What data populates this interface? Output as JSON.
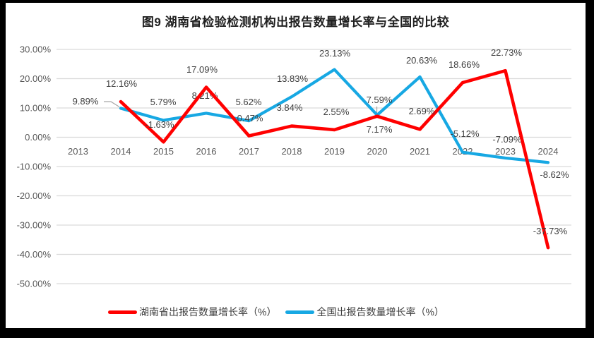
{
  "page": {
    "background": "#000000",
    "canvas_background": "#FFFFFF"
  },
  "chart_data": {
    "type": "line",
    "title": "图9 湖南省检验检测机构出报告数量增长率与全国的比较",
    "categories": [
      "2013",
      "2014",
      "2015",
      "2016",
      "2017",
      "2018",
      "2019",
      "2020",
      "2021",
      "2022",
      "2023",
      "2024"
    ],
    "y_axis": {
      "min": -50,
      "max": 30,
      "step": 10,
      "tick_labels": [
        "30.00%",
        "20.00%",
        "10.00%",
        "0.00%",
        "-10.00%",
        "-20.00%",
        "-30.00%",
        "-40.00%",
        "-50.00%"
      ],
      "grid": true
    },
    "legend_position": "bottom",
    "series": [
      {
        "name": "湖南省出报告数量增长率（%）",
        "color": "#FF0000",
        "values": [
          null,
          12.16,
          -1.63,
          17.09,
          0.47,
          3.84,
          2.55,
          7.17,
          2.69,
          18.66,
          22.73,
          -37.73
        ],
        "labels": [
          null,
          "12.16%",
          "-1.63%",
          "17.09%",
          "0.47%",
          "3.84%",
          "2.55%",
          "7.17%",
          "2.69%",
          "18.66%",
          "22.73%",
          "-37.73%"
        ]
      },
      {
        "name": "全国出报告数量增长率（%）",
        "color": "#17A8E3",
        "values": [
          null,
          9.89,
          5.79,
          8.21,
          5.62,
          13.83,
          23.13,
          7.59,
          20.63,
          -5.12,
          -7.09,
          -8.62
        ],
        "labels": [
          null,
          "9.89%",
          "5.79%",
          "8.21%",
          "5.62%",
          "13.83%",
          "23.13%",
          "7.59%",
          "20.63%",
          "-5.12%",
          "-7.09%",
          "-8.62%"
        ]
      }
    ],
    "label_color": "#404040",
    "axis_label_color": "#595959",
    "gridline_color": "#D9D9D9",
    "leader_line_color": "#A6A6A6"
  }
}
